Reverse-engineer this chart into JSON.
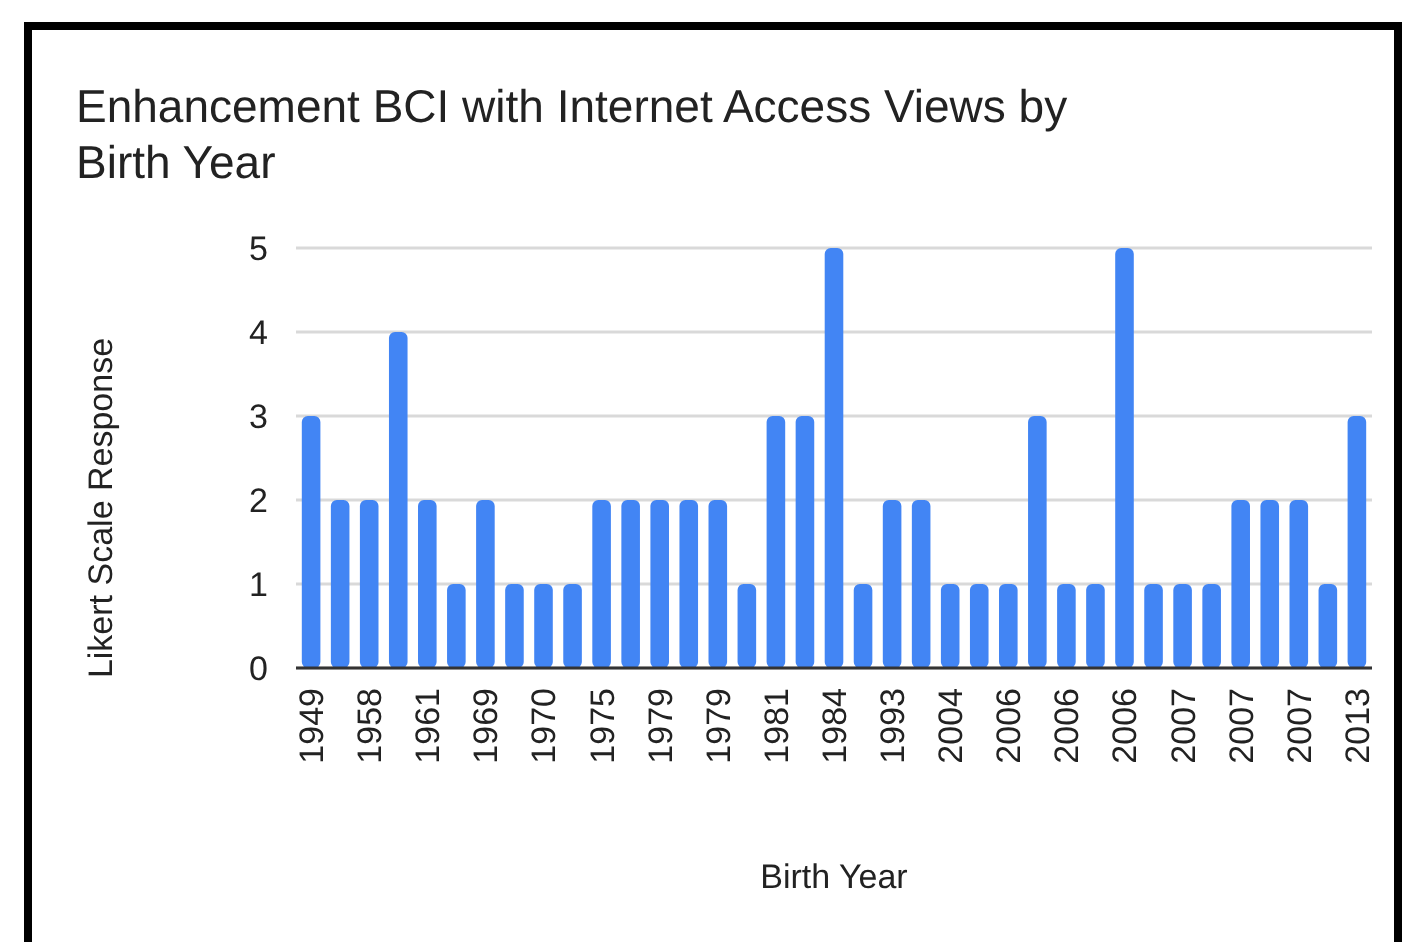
{
  "chart_data": {
    "type": "bar",
    "title": "Enhancement BCI with Internet Access Views by Birth Year",
    "xlabel": "Birth Year",
    "ylabel": "Likert Scale Response",
    "categories": [
      "1949",
      null,
      "1958",
      null,
      "1961",
      null,
      "1969",
      null,
      "1970",
      null,
      "1975",
      null,
      "1979",
      null,
      "1979",
      null,
      "1981",
      null,
      "1984",
      null,
      "1993",
      null,
      "2004",
      null,
      "2006",
      null,
      "2006",
      null,
      "2006",
      null,
      "2007",
      null,
      "2007",
      null,
      "2007",
      null,
      "2013"
    ],
    "values": [
      3,
      2,
      2,
      4,
      2,
      1,
      2,
      1,
      1,
      1,
      2,
      2,
      2,
      2,
      2,
      1,
      3,
      3,
      5,
      1,
      2,
      2,
      1,
      1,
      1,
      3,
      1,
      1,
      5,
      1,
      1,
      1,
      2,
      2,
      2,
      1,
      3
    ],
    "color": "#4285f4",
    "ylim": [
      0,
      5
    ],
    "yticks": [
      0,
      1,
      2,
      3,
      4,
      5
    ],
    "grid": "y"
  }
}
